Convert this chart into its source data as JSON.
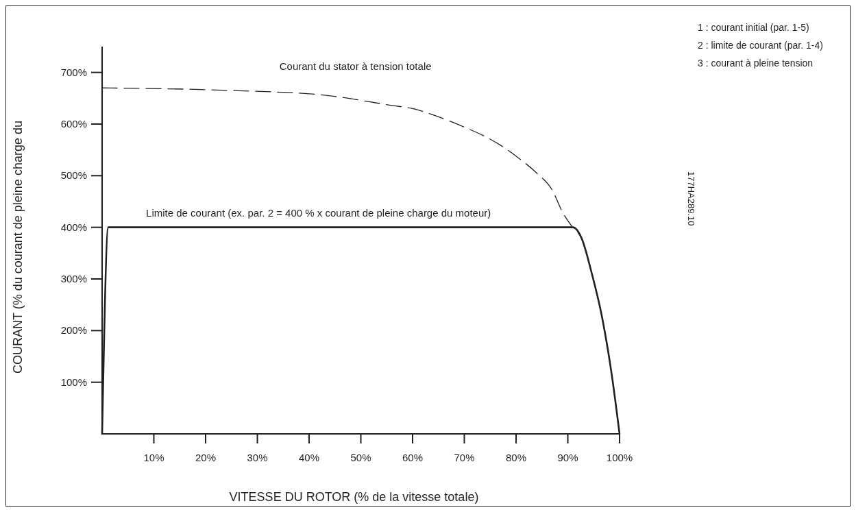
{
  "chart_data": {
    "type": "line",
    "xlabel": "VITESSE DU ROTOR (% de la vitesse totale)",
    "ylabel": "COURANT (% du courant de pleine charge du",
    "xlim": [
      0,
      100
    ],
    "ylim": [
      0,
      750
    ],
    "xticks": [
      {
        "value": 10,
        "label": "10%"
      },
      {
        "value": 20,
        "label": "20%"
      },
      {
        "value": 30,
        "label": "30%"
      },
      {
        "value": 40,
        "label": "40%"
      },
      {
        "value": 50,
        "label": "50%"
      },
      {
        "value": 60,
        "label": "60%"
      },
      {
        "value": 70,
        "label": "70%"
      },
      {
        "value": 80,
        "label": "80%"
      },
      {
        "value": 90,
        "label": "90%"
      },
      {
        "value": 100,
        "label": "100%"
      }
    ],
    "yticks": [
      {
        "value": 100,
        "label": "100%"
      },
      {
        "value": 200,
        "label": "200%"
      },
      {
        "value": 300,
        "label": "300%"
      },
      {
        "value": 400,
        "label": "400%"
      },
      {
        "value": 500,
        "label": "500%"
      },
      {
        "value": 600,
        "label": "600%"
      },
      {
        "value": 700,
        "label": "700%"
      }
    ],
    "grid": false,
    "marker": "none",
    "series": [
      {
        "name": "Courant du stator à tension totale",
        "color": "#231f20",
        "line_style": "dashed",
        "x": [
          0,
          25,
          43,
          56,
          60,
          65,
          70,
          73.6,
          77,
          80.5,
          84,
          87,
          89,
          91,
          92.7,
          94.6,
          96.6,
          98.5,
          100
        ],
        "values": [
          670,
          665,
          656,
          636,
          630,
          614,
          594,
          578,
          559,
          534,
          505,
          472,
          429,
          399,
          378,
          312,
          227,
          114,
          0
        ]
      },
      {
        "name": "Limite de courant (ex. par. 2 = 400 % x courant de pleine charge du moteur)",
        "color": "#231f20",
        "line_style": "solid",
        "x": [
          0,
          1.2,
          91,
          92.7,
          94.6,
          96.6,
          98.5,
          100
        ],
        "values": [
          0,
          400,
          400,
          378,
          312,
          227,
          114,
          0
        ]
      }
    ],
    "annotations": [
      "1 : courant initial (par. 1-5)",
      "2 : limite de courant (par. 1-4)",
      "3 : courant à pleine tension",
      "177HA289.10"
    ]
  }
}
